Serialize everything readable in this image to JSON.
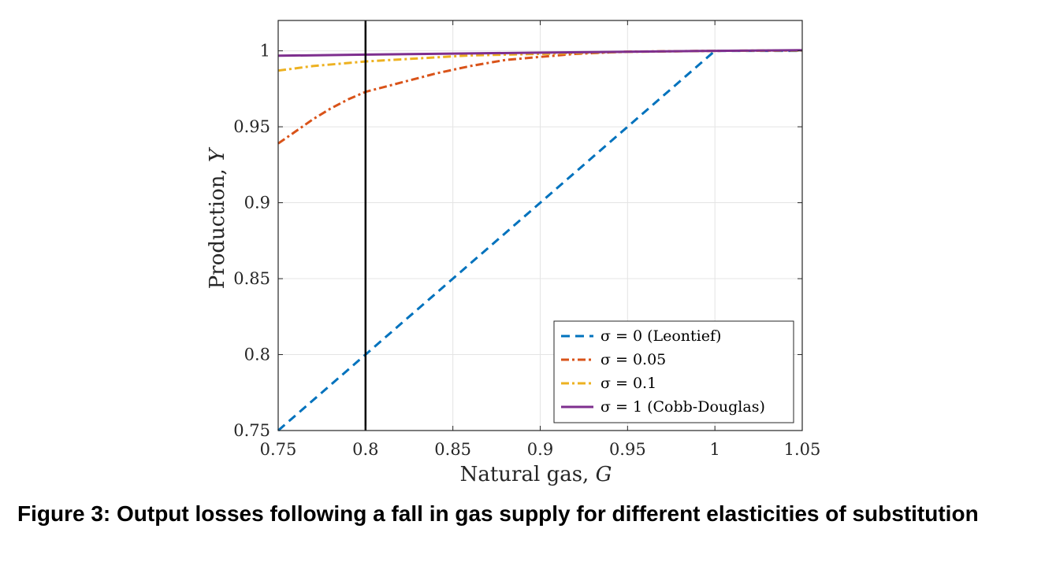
{
  "caption": "Figure 3: Output losses following a fall in gas supply for different elasticities of substitution",
  "chart_data": {
    "type": "line",
    "xlabel_text": "Natural gas, ",
    "xlabel_var": "G",
    "ylabel_text": "Production, ",
    "ylabel_var": "Y",
    "xlim": [
      0.75,
      1.05
    ],
    "ylim": [
      0.75,
      1.02
    ],
    "xticks": [
      0.75,
      0.8,
      0.85,
      0.9,
      0.95,
      1,
      1.05
    ],
    "yticks": [
      0.75,
      0.8,
      0.85,
      0.9,
      0.95,
      1
    ],
    "xtick_labels": [
      "0.75",
      "0.8",
      "0.85",
      "0.9",
      "0.95",
      "1",
      "1.05"
    ],
    "ytick_labels": [
      "0.75",
      "0.8",
      "0.85",
      "0.9",
      "0.95",
      "1"
    ],
    "grid": true,
    "legend_position": "bottom-right",
    "vertical_line": {
      "x": 0.8,
      "color": "#000000"
    },
    "series": [
      {
        "name": "σ = 0 (Leontief)",
        "color": "#0072BD",
        "dash": "dashed",
        "x": [
          0.75,
          0.8,
          0.85,
          0.9,
          0.95,
          1.0,
          1.05
        ],
        "y": [
          0.75,
          0.8,
          0.85,
          0.9,
          0.95,
          1.0,
          1.0
        ]
      },
      {
        "name": "σ = 0.05",
        "color": "#D95319",
        "dash": "dashdot",
        "x": [
          0.75,
          0.76,
          0.77,
          0.78,
          0.79,
          0.8,
          0.82,
          0.84,
          0.86,
          0.88,
          0.9,
          0.92,
          0.95,
          1.0,
          1.05
        ],
        "y": [
          0.939,
          0.947,
          0.955,
          0.962,
          0.968,
          0.973,
          0.979,
          0.985,
          0.99,
          0.994,
          0.996,
          0.998,
          0.9995,
          1.0,
          1.0003
        ]
      },
      {
        "name": "σ = 0.1",
        "color": "#EDB120",
        "dash": "dashdot",
        "x": [
          0.75,
          0.77,
          0.8,
          0.83,
          0.86,
          0.9,
          0.95,
          1.0,
          1.05
        ],
        "y": [
          0.987,
          0.99,
          0.993,
          0.995,
          0.997,
          0.998,
          0.9993,
          1.0,
          1.0002
        ]
      },
      {
        "name": "σ = 1 (Cobb-Douglas)",
        "color": "#7E2F8E",
        "dash": "solid",
        "x": [
          0.75,
          0.8,
          0.85,
          0.9,
          0.95,
          1.0,
          1.05
        ],
        "y": [
          0.9968,
          0.9975,
          0.9982,
          0.9988,
          0.9994,
          1.0,
          1.0004
        ]
      }
    ]
  }
}
